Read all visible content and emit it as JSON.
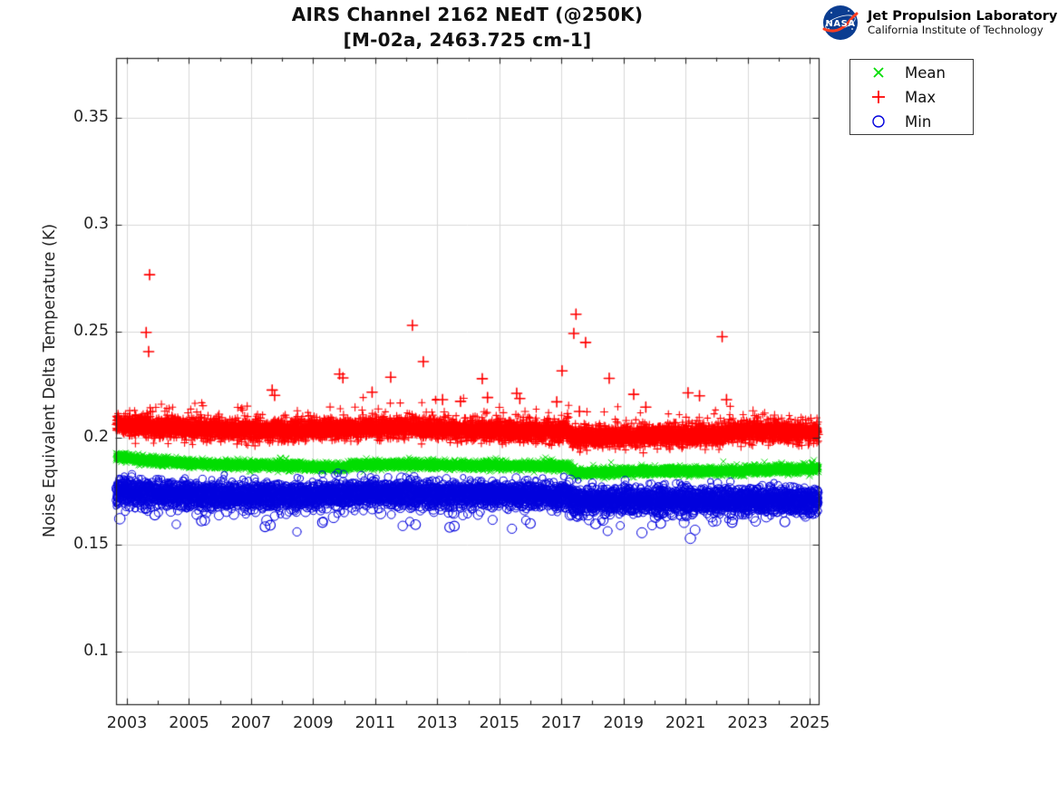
{
  "branding": {
    "nasa_text": "NASA",
    "org": "Jet Propulsion Laboratory",
    "sub": "California Institute of Technology",
    "insignia_blue": "#0b3d91",
    "insignia_red": "#fc3d21"
  },
  "title": {
    "line1": "AIRS Channel 2162 NEdT (@250K)",
    "line2": "[M-02a, 2463.725 cm-1]"
  },
  "legend": {
    "entries": [
      {
        "label": "Mean",
        "marker": "x",
        "color": "#00dd00"
      },
      {
        "label": "Max",
        "marker": "+",
        "color": "#ff0000"
      },
      {
        "label": "Min",
        "marker": "o",
        "color": "#0000dd"
      }
    ]
  },
  "chart_data": {
    "type": "scatter",
    "title": "AIRS Channel 2162 NEdT (@250K)",
    "subtitle": "[M-02a, 2463.725 cm-1]",
    "xlabel": "",
    "ylabel": "Noise Equivalent Delta Temperature (K)",
    "xlim": [
      2002.649,
      2025.289
    ],
    "ylim": [
      0.0754,
      0.378
    ],
    "grid": true,
    "legend_position": "outside-top-right",
    "x_major_ticks": [
      2003,
      2005,
      2007,
      2009,
      2011,
      2013,
      2015,
      2017,
      2019,
      2021,
      2023,
      2025
    ],
    "x_major_tick_labels": [
      "2003",
      "2005",
      "2007",
      "2009",
      "2011",
      "2013",
      "2015",
      "2017",
      "2019",
      "2021",
      "2023",
      "2025"
    ],
    "x_minor_ticks": [
      2004,
      2006,
      2008,
      2010,
      2012,
      2014,
      2016,
      2018,
      2020,
      2022,
      2024
    ],
    "y_ticks": [
      0.1,
      0.15,
      0.2,
      0.25,
      0.3,
      0.35
    ],
    "y_tick_labels": [
      "0.1",
      "0.15",
      "0.2",
      "0.25",
      "0.3",
      "0.35"
    ],
    "grid_color": "#d9d9d9",
    "axis_color": "#262626",
    "seed": 20250417,
    "series": [
      {
        "name": "Mean",
        "marker": "x",
        "color": "#00dd00",
        "points_per_year": 300,
        "sigma": 0.001,
        "tail": {
          "prob": 0.012,
          "scale": 0.0012,
          "max": 0.003,
          "dir": 1
        },
        "keyframes": [
          [
            2002.649,
            0.1915
          ],
          [
            2003.5,
            0.1896
          ],
          [
            2004.5,
            0.1886
          ],
          [
            2006,
            0.1876
          ],
          [
            2008,
            0.1871
          ],
          [
            2009,
            0.1866
          ],
          [
            2009.9,
            0.1862
          ],
          [
            2010.3,
            0.1876
          ],
          [
            2012,
            0.1876
          ],
          [
            2014,
            0.1872
          ],
          [
            2016,
            0.187
          ],
          [
            2017.25,
            0.1868
          ],
          [
            2017.4,
            0.1836
          ],
          [
            2018.5,
            0.184
          ],
          [
            2020,
            0.1846
          ],
          [
            2021.5,
            0.1844
          ],
          [
            2022.5,
            0.1846
          ],
          [
            2024,
            0.1854
          ],
          [
            2025.289,
            0.1858
          ]
        ],
        "outliers": [
          [
            2007.95,
            0.1906
          ],
          [
            2008.12,
            0.1903
          ],
          [
            2013.8,
            0.1886
          ],
          [
            2013.95,
            0.1883
          ],
          [
            2021.85,
            0.1854
          ]
        ]
      },
      {
        "name": "Max",
        "marker": "+",
        "color": "#ff0000",
        "points_per_year": 320,
        "sigma": 0.0023,
        "tail": {
          "prob": 0.1,
          "scale": 0.0028,
          "max": 0.011,
          "dir": 1
        },
        "keyframes": [
          [
            2002.649,
            0.2062
          ],
          [
            2004,
            0.205
          ],
          [
            2006,
            0.204
          ],
          [
            2008,
            0.2035
          ],
          [
            2010,
            0.2045
          ],
          [
            2012,
            0.2048
          ],
          [
            2013,
            0.204
          ],
          [
            2015,
            0.2035
          ],
          [
            2017.2,
            0.203
          ],
          [
            2017.35,
            0.2
          ],
          [
            2018.5,
            0.2005
          ],
          [
            2019.5,
            0.201
          ],
          [
            2021,
            0.2015
          ],
          [
            2022,
            0.2012
          ],
          [
            2022.7,
            0.2035
          ],
          [
            2023.8,
            0.2032
          ],
          [
            2024.5,
            0.2022
          ],
          [
            2025.289,
            0.2025
          ]
        ],
        "outliers": [
          [
            2003.62,
            0.2495
          ],
          [
            2003.7,
            0.2405
          ],
          [
            2003.73,
            0.2765
          ],
          [
            2007.68,
            0.2225
          ],
          [
            2007.76,
            0.22
          ],
          [
            2009.85,
            0.23
          ],
          [
            2009.96,
            0.2282
          ],
          [
            2010.9,
            0.2215
          ],
          [
            2011.5,
            0.2285
          ],
          [
            2012.2,
            0.2528
          ],
          [
            2012.55,
            0.2358
          ],
          [
            2013.17,
            0.218
          ],
          [
            2013.75,
            0.2172
          ],
          [
            2014.45,
            0.2278
          ],
          [
            2014.62,
            0.219
          ],
          [
            2015.56,
            0.221
          ],
          [
            2015.66,
            0.2185
          ],
          [
            2016.85,
            0.217
          ],
          [
            2017.02,
            0.2315
          ],
          [
            2017.4,
            0.249
          ],
          [
            2017.47,
            0.258
          ],
          [
            2017.58,
            0.2125
          ],
          [
            2017.78,
            0.2448
          ],
          [
            2018.54,
            0.228
          ],
          [
            2019.33,
            0.2205
          ],
          [
            2019.72,
            0.2145
          ],
          [
            2021.08,
            0.2212
          ],
          [
            2021.45,
            0.2198
          ],
          [
            2022.18,
            0.2475
          ],
          [
            2022.32,
            0.218
          ]
        ]
      },
      {
        "name": "Min",
        "marker": "o",
        "color": "#0000dd",
        "points_per_year": 320,
        "sigma": 0.0028,
        "tail": {
          "prob": 0.06,
          "scale": 0.003,
          "max": 0.012,
          "dir": -1
        },
        "keyframes": [
          [
            2002.649,
            0.1752
          ],
          [
            2003.5,
            0.1743
          ],
          [
            2005,
            0.1736
          ],
          [
            2006.5,
            0.173
          ],
          [
            2008,
            0.1732
          ],
          [
            2010,
            0.1738
          ],
          [
            2012,
            0.174
          ],
          [
            2014,
            0.1738
          ],
          [
            2016,
            0.1734
          ],
          [
            2017.25,
            0.1732
          ],
          [
            2017.4,
            0.1708
          ],
          [
            2018.5,
            0.1705
          ],
          [
            2020,
            0.1707
          ],
          [
            2021.5,
            0.1708
          ],
          [
            2023,
            0.1712
          ],
          [
            2024,
            0.171
          ],
          [
            2025.289,
            0.1706
          ]
        ],
        "outliers": [
          [
            2003.9,
            0.164
          ],
          [
            2005.4,
            0.1612
          ],
          [
            2007.45,
            0.1585
          ],
          [
            2007.62,
            0.1592
          ],
          [
            2009.3,
            0.1605
          ],
          [
            2012.3,
            0.1595
          ],
          [
            2013.4,
            0.1582
          ],
          [
            2013.55,
            0.1588
          ],
          [
            2016.0,
            0.16
          ],
          [
            2018.1,
            0.1598
          ],
          [
            2020.2,
            0.16
          ],
          [
            2022.5,
            0.1605
          ],
          [
            2024.2,
            0.1608
          ]
        ]
      }
    ]
  }
}
